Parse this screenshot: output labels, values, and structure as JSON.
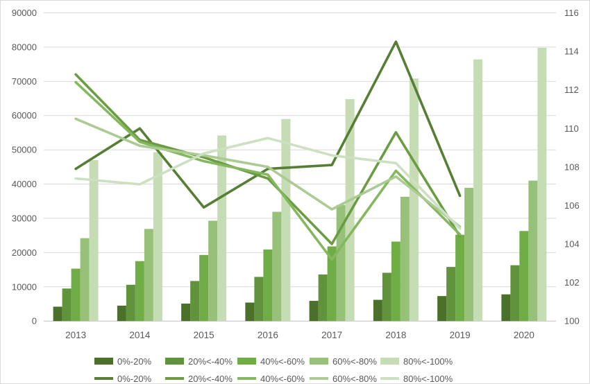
{
  "chart_data": {
    "type": "combo-bar-line",
    "title": "",
    "categories": [
      "2013",
      "2014",
      "2015",
      "2016",
      "2017",
      "2018",
      "2019",
      "2020"
    ],
    "left_axis": {
      "min": 0,
      "max": 90000,
      "step": 10000,
      "tick_labels": [
        "0",
        "10000",
        "20000",
        "30000",
        "40000",
        "50000",
        "60000",
        "70000",
        "80000",
        "90000"
      ]
    },
    "right_axis": {
      "min": 100,
      "max": 116,
      "step": 2,
      "tick_labels": [
        "100",
        "102",
        "104",
        "106",
        "108",
        "110",
        "112",
        "114",
        "116"
      ]
    },
    "grid": true,
    "legend_position": "bottom",
    "bar_series": [
      {
        "name": "0%-20%",
        "color": "#4a7029",
        "axis": "left",
        "values": [
          4200,
          4500,
          5100,
          5400,
          5900,
          6200,
          7300,
          7800
        ]
      },
      {
        "name": "20%<-40%",
        "color": "#61923c",
        "axis": "left",
        "values": [
          9500,
          10600,
          11700,
          12900,
          13600,
          14100,
          15800,
          16300
        ]
      },
      {
        "name": "40%<-60%",
        "color": "#71ad47",
        "axis": "left",
        "values": [
          15300,
          17500,
          19300,
          20900,
          21800,
          23200,
          25200,
          26300
        ]
      },
      {
        "name": "60%<-80%",
        "color": "#97c179",
        "axis": "left",
        "values": [
          24200,
          26900,
          29300,
          31900,
          33900,
          36300,
          38900,
          41000
        ]
      },
      {
        "name": "80%<-100%",
        "color": "#c6dcb5",
        "axis": "left",
        "values": [
          47000,
          49300,
          54200,
          59000,
          64800,
          70800,
          76400,
          79800
        ]
      }
    ],
    "line_series": [
      {
        "name": "0%-20%",
        "color": "#567f35",
        "axis": "right",
        "values": [
          107.9,
          110.0,
          105.9,
          107.9,
          108.1,
          114.5,
          106.5,
          null
        ]
      },
      {
        "name": "20%<-40%",
        "color": "#6b9c42",
        "axis": "right",
        "values": [
          112.8,
          109.4,
          108.5,
          107.4,
          104.0,
          109.8,
          104.4,
          null
        ]
      },
      {
        "name": "40%<-60%",
        "color": "#84b85e",
        "axis": "right",
        "values": [
          112.4,
          109.3,
          108.3,
          107.6,
          103.2,
          107.8,
          104.5,
          null
        ]
      },
      {
        "name": "60%<-80%",
        "color": "#abcb92",
        "axis": "right",
        "values": [
          110.5,
          109.1,
          108.6,
          108.0,
          105.8,
          107.5,
          104.9,
          null
        ]
      },
      {
        "name": "80%<-100%",
        "color": "#cde0c2",
        "axis": "right",
        "values": [
          107.4,
          107.1,
          108.7,
          109.5,
          108.6,
          108.2,
          104.8,
          null
        ]
      }
    ]
  },
  "styles": {
    "background": "#ffffff",
    "border_color": "#d9d9d9",
    "gridline_color": "#d9d9d9",
    "axis_line_color": "#bfbfbf",
    "axis_text_color": "#595959"
  }
}
